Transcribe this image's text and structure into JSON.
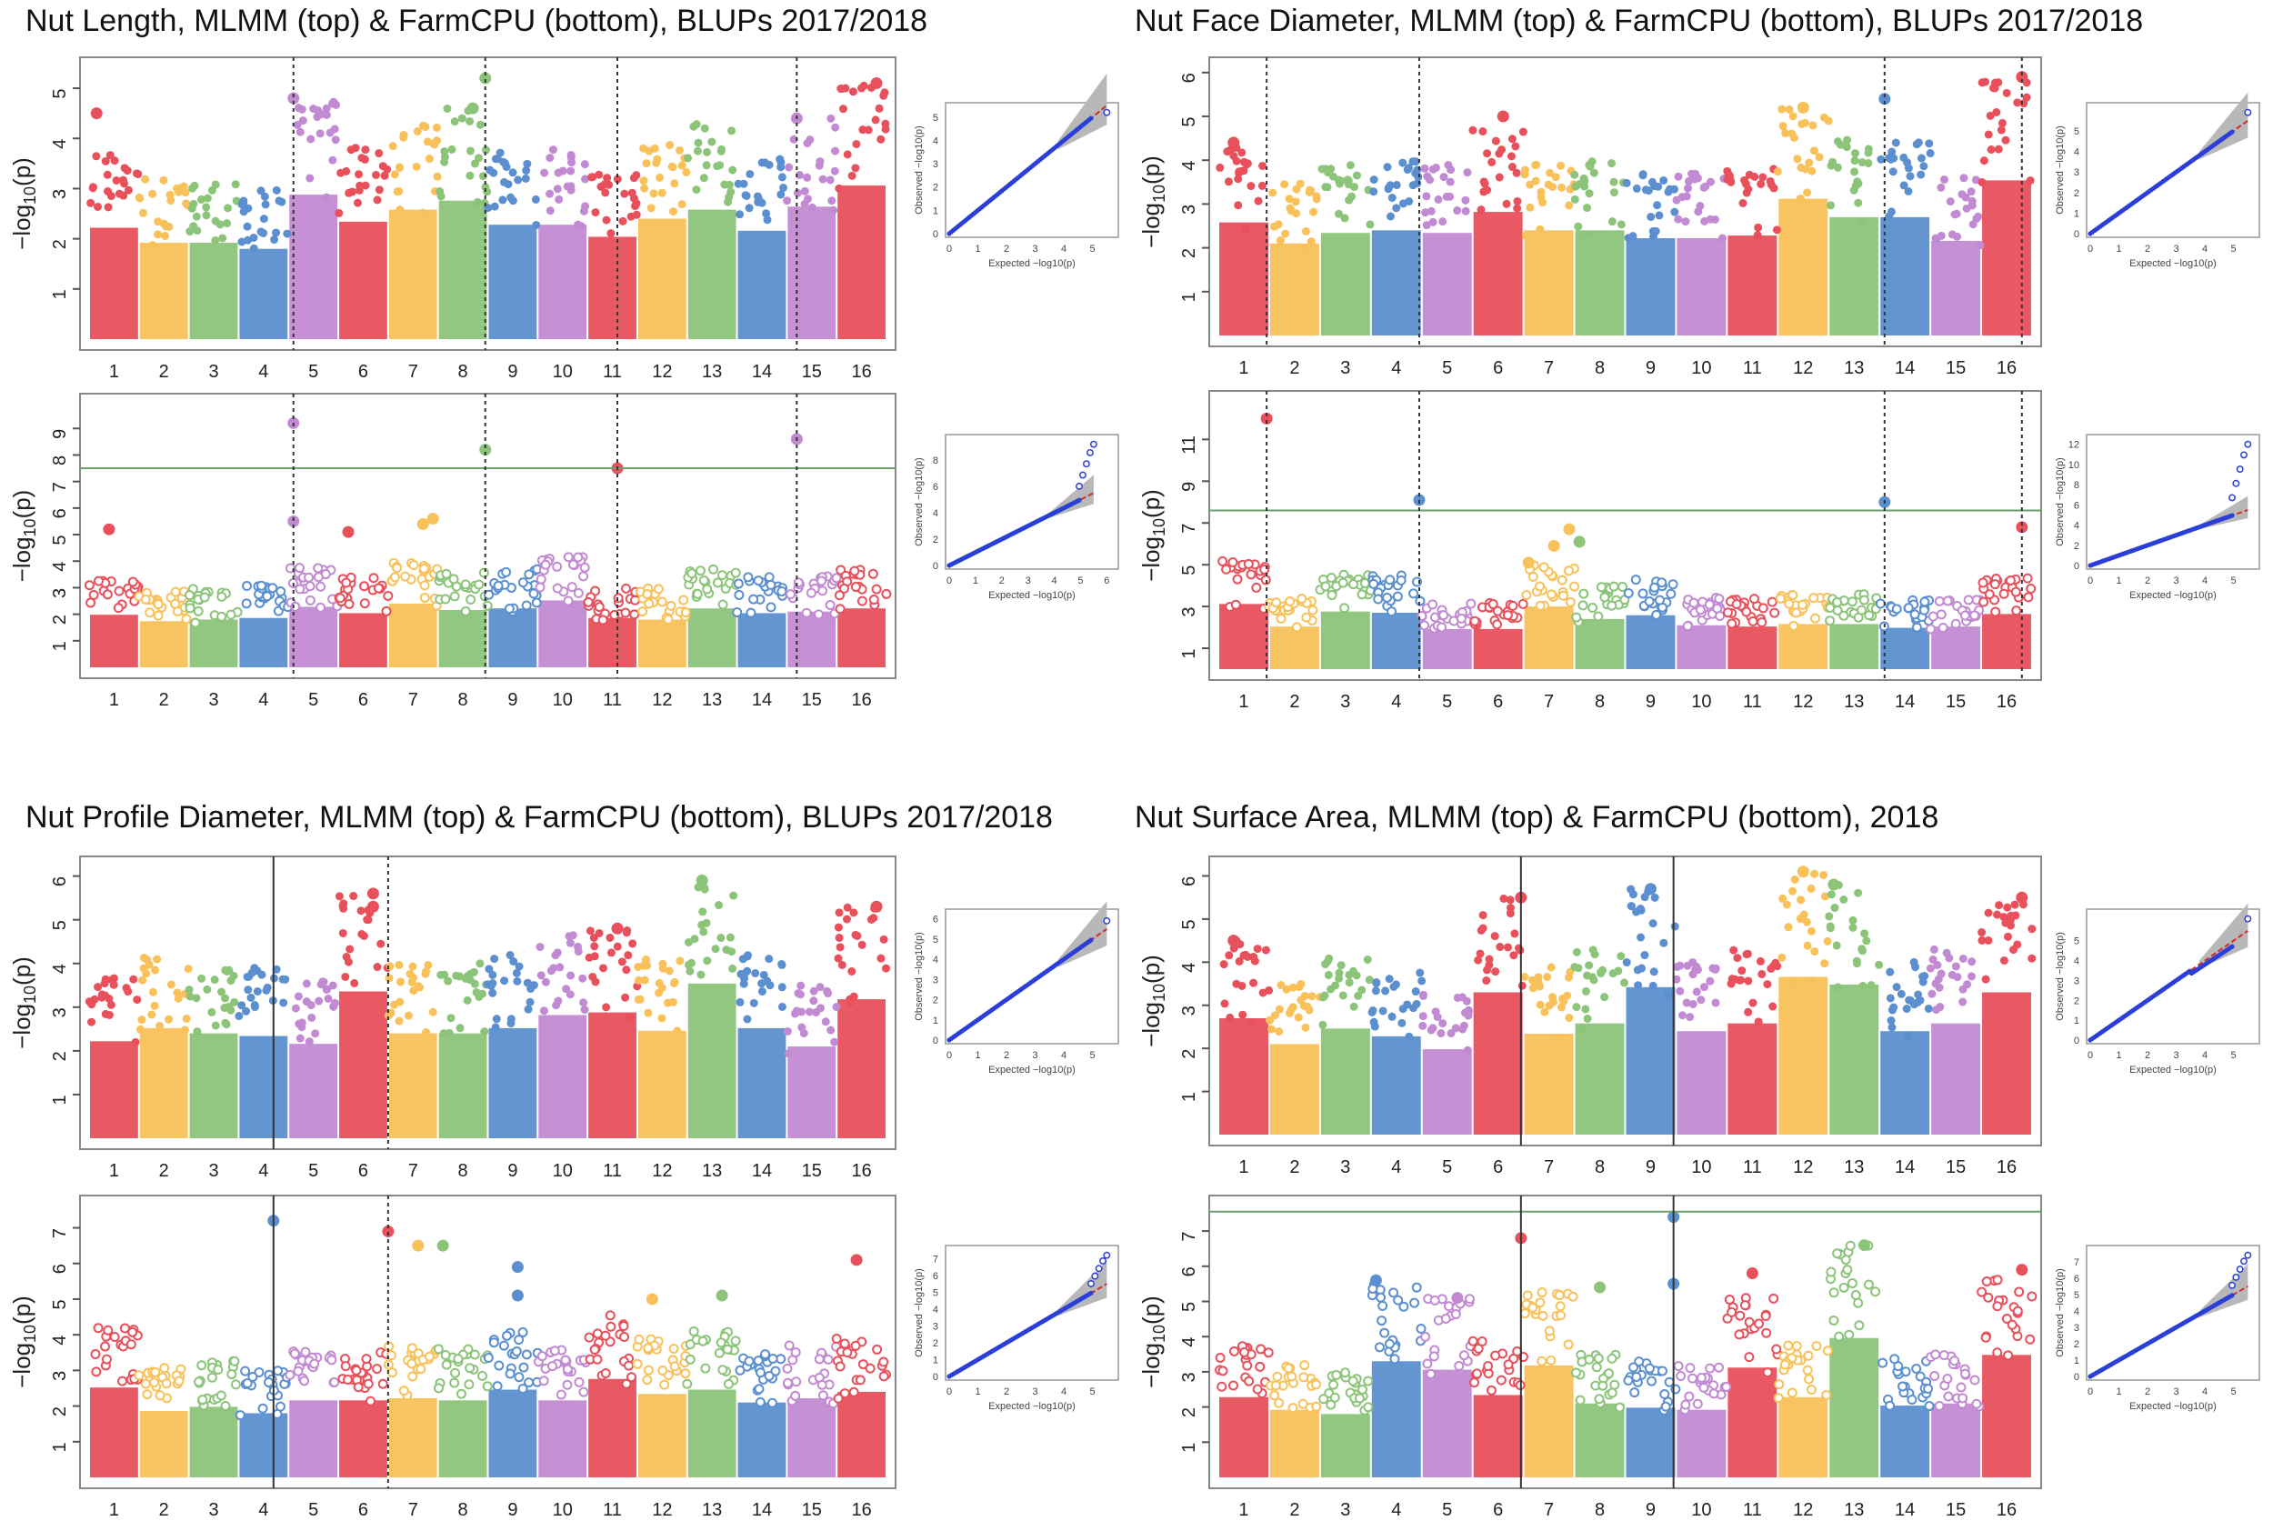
{
  "figure": {
    "chromosomes": [
      "1",
      "2",
      "3",
      "4",
      "5",
      "6",
      "7",
      "8",
      "9",
      "10",
      "11",
      "12",
      "13",
      "14",
      "15",
      "16"
    ],
    "chromosome_colors": [
      "#e8505b",
      "#f8c15a",
      "#8cc47a",
      "#5b8fcf",
      "#c28ad2"
    ],
    "threshold_color": "#6e9e6e",
    "marker_line_color": "#333333",
    "qq_point_color": "#2a3fd8",
    "qq_line_color": "#d42a2a",
    "qq_band_color": "#b8b8b8",
    "y_axis_label_main": "−log",
    "y_axis_label_sub": "10",
    "y_axis_label_tail": "(p)"
  },
  "panels": [
    {
      "title": "Nut Length, MLMM (top) & FarmCPU (bottom), BLUPs 2017/2018",
      "marker_lines": [
        {
          "chr": 5,
          "pos": 0.1
        },
        {
          "chr": 8,
          "pos": 0.95
        },
        {
          "chr": 11,
          "pos": 0.6
        },
        {
          "chr": 15,
          "pos": 0.2
        }
      ],
      "marker_style": "dotted"
    },
    {
      "title": "Nut Face Diameter, MLMM (top) & FarmCPU (bottom), BLUPs 2017/2018",
      "marker_lines": [
        {
          "chr": 1,
          "pos": 0.95
        },
        {
          "chr": 4,
          "pos": 0.95
        },
        {
          "chr": 14,
          "pos": 0.1
        },
        {
          "chr": 16,
          "pos": 0.8
        }
      ],
      "marker_style": "dotted"
    },
    {
      "title": "Nut Profile Diameter, MLMM (top) & FarmCPU (bottom), BLUPs 2017/2018",
      "marker_lines": [
        {
          "chr": 4,
          "pos": 0.7
        },
        {
          "chr": 6,
          "pos": 1.0
        }
      ],
      "marker_style": "mixed"
    },
    {
      "title": "Nut Surface Area, MLMM (top) & FarmCPU (bottom), 2018",
      "marker_lines": [
        {
          "chr": 6,
          "pos": 0.95
        },
        {
          "chr": 9,
          "pos": 0.95
        }
      ],
      "marker_style": "solid"
    }
  ],
  "chart_data": [
    {
      "type": "scatter",
      "subtype": "manhattan",
      "method": "MLMM",
      "title": "Nut Length, MLMM (top)",
      "ylabel": "-log10(p)",
      "yticks": [
        1,
        2,
        3,
        4,
        5
      ],
      "ylim": [
        0,
        5.4
      ],
      "threshold": null,
      "chr_peaks": [
        3.7,
        3.2,
        3.2,
        3.0,
        4.8,
        3.9,
        4.3,
        4.6,
        3.8,
        3.8,
        3.4,
        4.0,
        4.3,
        3.6,
        4.4,
        5.1
      ],
      "hits": [
        {
          "chr": 8,
          "pos": 0.95,
          "value": 5.2
        },
        {
          "chr": 16,
          "pos": 0.8,
          "value": 5.1
        },
        {
          "chr": 5,
          "pos": 0.1,
          "value": 4.8
        },
        {
          "chr": 1,
          "pos": 0.15,
          "value": 4.5
        },
        {
          "chr": 8,
          "pos": 0.7,
          "value": 4.6
        },
        {
          "chr": 15,
          "pos": 0.2,
          "value": 4.4
        }
      ],
      "qq": {
        "max_expected": 5.5,
        "max_observed": 5.2,
        "xticks": [
          0,
          1,
          2,
          3,
          4,
          5
        ],
        "yticks": [
          0,
          1,
          2,
          3,
          4,
          5
        ],
        "inflation": "none"
      }
    },
    {
      "type": "scatter",
      "subtype": "manhattan",
      "method": "FarmCPU",
      "title": "Nut Length, FarmCPU (bottom)",
      "ylabel": "-log10(p)",
      "yticks": [
        1,
        2,
        3,
        4,
        5,
        6,
        7,
        8,
        9
      ],
      "ylim": [
        0,
        9.9
      ],
      "threshold": 7.5,
      "chr_peaks": [
        3.3,
        2.9,
        3.0,
        3.1,
        3.8,
        3.4,
        4.0,
        3.6,
        3.7,
        4.2,
        3.1,
        3.0,
        3.7,
        3.4,
        3.5,
        3.7
      ],
      "hits": [
        {
          "chr": 5,
          "pos": 0.1,
          "value": 9.2
        },
        {
          "chr": 15,
          "pos": 0.2,
          "value": 8.6
        },
        {
          "chr": 8,
          "pos": 0.95,
          "value": 8.2
        },
        {
          "chr": 11,
          "pos": 0.6,
          "value": 7.5
        },
        {
          "chr": 5,
          "pos": 0.1,
          "value": 5.5
        },
        {
          "chr": 7,
          "pos": 0.9,
          "value": 5.6
        },
        {
          "chr": 1,
          "pos": 0.4,
          "value": 5.2
        },
        {
          "chr": 6,
          "pos": 0.2,
          "value": 5.1
        },
        {
          "chr": 7,
          "pos": 0.7,
          "value": 5.4
        }
      ],
      "qq": {
        "max_expected": 5.5,
        "max_observed": 9.2,
        "xticks": [
          0,
          1,
          2,
          3,
          4,
          5,
          6
        ],
        "yticks": [
          0,
          2,
          4,
          6,
          8
        ],
        "inflation": "tail"
      }
    },
    {
      "type": "scatter",
      "subtype": "manhattan",
      "method": "MLMM",
      "title": "Nut Face Diameter, MLMM (top)",
      "ylabel": "-log10(p)",
      "yticks": [
        1,
        2,
        3,
        4,
        5,
        6
      ],
      "ylim": [
        0,
        6.1
      ],
      "threshold": null,
      "chr_peaks": [
        4.3,
        3.5,
        3.9,
        4.0,
        3.9,
        4.7,
        4.0,
        4.0,
        3.7,
        3.7,
        3.8,
        5.2,
        4.5,
        4.5,
        3.6,
        5.9
      ],
      "hits": [
        {
          "chr": 16,
          "pos": 0.8,
          "value": 5.9
        },
        {
          "chr": 14,
          "pos": 0.1,
          "value": 5.4
        },
        {
          "chr": 12,
          "pos": 0.5,
          "value": 5.2
        },
        {
          "chr": 6,
          "pos": 0.6,
          "value": 5.0
        },
        {
          "chr": 1,
          "pos": 0.3,
          "value": 4.4
        }
      ],
      "qq": {
        "max_expected": 5.5,
        "max_observed": 5.9,
        "xticks": [
          0,
          1,
          2,
          3,
          4,
          5
        ],
        "yticks": [
          0,
          1,
          2,
          3,
          4,
          5
        ],
        "inflation": "none"
      }
    },
    {
      "type": "scatter",
      "subtype": "manhattan",
      "method": "FarmCPU",
      "title": "Nut Face Diameter, FarmCPU (bottom)",
      "ylabel": "-log10(p)",
      "yticks": [
        1,
        3,
        5,
        7,
        9,
        11
      ],
      "ylim": [
        0,
        12.8
      ],
      "threshold": 7.6,
      "chr_peaks": [
        5.2,
        3.4,
        4.6,
        4.5,
        3.2,
        3.2,
        5.0,
        4.0,
        4.3,
        3.5,
        3.4,
        3.6,
        3.6,
        3.3,
        3.4,
        4.4
      ],
      "hits": [
        {
          "chr": 1,
          "pos": 0.95,
          "value": 12.0
        },
        {
          "chr": 4,
          "pos": 0.95,
          "value": 8.1
        },
        {
          "chr": 14,
          "pos": 0.1,
          "value": 8.0
        },
        {
          "chr": 16,
          "pos": 0.8,
          "value": 6.8
        },
        {
          "chr": 7,
          "pos": 0.9,
          "value": 6.7
        },
        {
          "chr": 7,
          "pos": 0.6,
          "value": 5.9
        },
        {
          "chr": 8,
          "pos": 0.1,
          "value": 6.1
        },
        {
          "chr": 7,
          "pos": 0.1,
          "value": 5.1
        }
      ],
      "qq": {
        "max_expected": 5.5,
        "max_observed": 12.0,
        "xticks": [
          0,
          1,
          2,
          3,
          4,
          5
        ],
        "yticks": [
          0,
          2,
          4,
          6,
          8,
          10,
          12
        ],
        "inflation": "tail"
      }
    },
    {
      "type": "scatter",
      "subtype": "manhattan",
      "method": "MLMM",
      "title": "Nut Profile Diameter, MLMM (top)",
      "ylabel": "-log10(p)",
      "yticks": [
        1,
        2,
        3,
        4,
        5,
        6
      ],
      "ylim": [
        0,
        6.2
      ],
      "threshold": null,
      "chr_peaks": [
        3.7,
        4.2,
        4.0,
        3.9,
        3.6,
        5.6,
        4.0,
        4.0,
        4.2,
        4.7,
        4.8,
        4.1,
        5.9,
        4.2,
        3.5,
        5.3
      ],
      "hits": [
        {
          "chr": 13,
          "pos": 0.3,
          "value": 5.9
        },
        {
          "chr": 6,
          "pos": 0.7,
          "value": 5.6
        },
        {
          "chr": 6,
          "pos": 0.7,
          "value": 5.3
        },
        {
          "chr": 16,
          "pos": 0.8,
          "value": 5.3
        },
        {
          "chr": 11,
          "pos": 0.6,
          "value": 4.8
        }
      ],
      "qq": {
        "max_expected": 5.5,
        "max_observed": 5.9,
        "xticks": [
          0,
          1,
          2,
          3,
          4,
          5
        ],
        "yticks": [
          0,
          1,
          2,
          3,
          4,
          5,
          6
        ],
        "inflation": "none"
      }
    },
    {
      "type": "scatter",
      "subtype": "manhattan",
      "method": "FarmCPU",
      "title": "Nut Profile Diameter, FarmCPU (bottom)",
      "ylabel": "-log10(p)",
      "yticks": [
        1,
        2,
        3,
        4,
        5,
        6,
        7
      ],
      "ylim": [
        0,
        7.6
      ],
      "threshold": null,
      "chr_peaks": [
        4.2,
        3.1,
        3.3,
        3.0,
        3.6,
        3.6,
        3.7,
        3.6,
        4.1,
        3.6,
        4.6,
        3.9,
        4.1,
        3.5,
        3.7,
        4.0
      ],
      "hits": [
        {
          "chr": 4,
          "pos": 0.7,
          "value": 7.2
        },
        {
          "chr": 6,
          "pos": 1.0,
          "value": 6.9
        },
        {
          "chr": 7,
          "pos": 0.6,
          "value": 6.5
        },
        {
          "chr": 8,
          "pos": 0.1,
          "value": 6.5
        },
        {
          "chr": 16,
          "pos": 0.4,
          "value": 6.1
        },
        {
          "chr": 9,
          "pos": 0.6,
          "value": 5.9
        },
        {
          "chr": 9,
          "pos": 0.6,
          "value": 5.1
        },
        {
          "chr": 13,
          "pos": 0.7,
          "value": 5.1
        },
        {
          "chr": 12,
          "pos": 0.3,
          "value": 5.0
        }
      ],
      "qq": {
        "max_expected": 5.5,
        "max_observed": 7.2,
        "xticks": [
          0,
          1,
          2,
          3,
          4,
          5
        ],
        "yticks": [
          0,
          1,
          2,
          3,
          4,
          5,
          6,
          7
        ],
        "inflation": "tail"
      }
    },
    {
      "type": "scatter",
      "subtype": "manhattan",
      "method": "MLMM",
      "title": "Nut Surface Area, MLMM (top)",
      "ylabel": "-log10(p)",
      "yticks": [
        1,
        2,
        3,
        4,
        5,
        6
      ],
      "ylim": [
        0,
        6.2
      ],
      "threshold": null,
      "chr_peaks": [
        4.5,
        3.5,
        4.1,
        3.8,
        3.3,
        5.5,
        3.9,
        4.3,
        5.7,
        4.0,
        4.3,
        6.1,
        5.8,
        4.0,
        4.3,
        5.5
      ],
      "hits": [
        {
          "chr": 12,
          "pos": 0.5,
          "value": 6.1
        },
        {
          "chr": 13,
          "pos": 0.1,
          "value": 5.8
        },
        {
          "chr": 9,
          "pos": 0.5,
          "value": 5.7
        },
        {
          "chr": 6,
          "pos": 0.95,
          "value": 5.5
        },
        {
          "chr": 16,
          "pos": 0.8,
          "value": 5.5
        },
        {
          "chr": 1,
          "pos": 0.3,
          "value": 4.5
        }
      ],
      "qq": {
        "max_expected": 5.5,
        "max_observed": 6.1,
        "xticks": [
          0,
          1,
          2,
          3,
          4,
          5
        ],
        "yticks": [
          0,
          1,
          2,
          3,
          4,
          5
        ],
        "inflation": "mild"
      }
    },
    {
      "type": "scatter",
      "subtype": "manhattan",
      "method": "FarmCPU",
      "title": "Nut Surface Area, FarmCPU (bottom)",
      "ylabel": "-log10(p)",
      "yticks": [
        1,
        2,
        3,
        4,
        5,
        6,
        7
      ],
      "ylim": [
        0,
        7.7
      ],
      "threshold": 7.55,
      "chr_peaks": [
        3.8,
        3.2,
        3.0,
        5.5,
        5.1,
        3.9,
        5.3,
        3.5,
        3.3,
        3.2,
        5.2,
        3.8,
        6.6,
        3.4,
        3.5,
        5.8
      ],
      "hits": [
        {
          "chr": 9,
          "pos": 0.95,
          "value": 7.4
        },
        {
          "chr": 6,
          "pos": 0.95,
          "value": 6.8
        },
        {
          "chr": 13,
          "pos": 0.7,
          "value": 6.6
        },
        {
          "chr": 16,
          "pos": 0.8,
          "value": 5.9
        },
        {
          "chr": 11,
          "pos": 0.5,
          "value": 5.8
        },
        {
          "chr": 4,
          "pos": 0.1,
          "value": 5.6
        },
        {
          "chr": 8,
          "pos": 0.5,
          "value": 5.4
        },
        {
          "chr": 9,
          "pos": 0.95,
          "value": 5.5
        },
        {
          "chr": 5,
          "pos": 0.7,
          "value": 5.1
        }
      ],
      "qq": {
        "max_expected": 5.5,
        "max_observed": 7.4,
        "xticks": [
          0,
          1,
          2,
          3,
          4,
          5
        ],
        "yticks": [
          0,
          1,
          2,
          3,
          4,
          5,
          6,
          7
        ],
        "inflation": "tail"
      }
    }
  ]
}
